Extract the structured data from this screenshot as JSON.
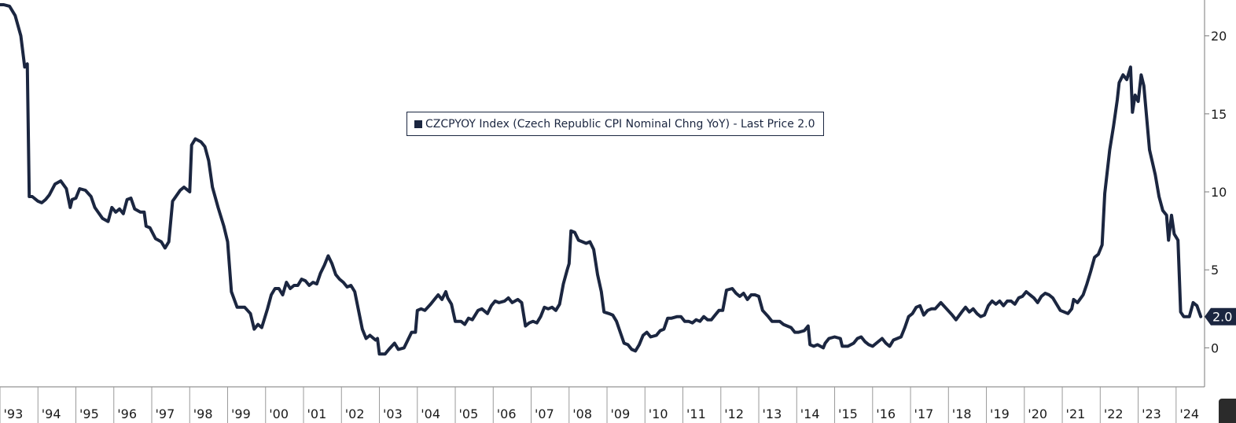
{
  "chart_data": {
    "type": "line",
    "title": "",
    "xlabel": "",
    "ylabel": "",
    "x_tick_labels": [
      "'93",
      "'94",
      "'95",
      "'96",
      "'97",
      "'98",
      "'99",
      "'00",
      "'01",
      "'02",
      "'03",
      "'04",
      "'05",
      "'06",
      "'07",
      "'08",
      "'09",
      "'10",
      "'11",
      "'12",
      "'13",
      "'14",
      "'15",
      "'16",
      "'17",
      "'18",
      "'19",
      "'20",
      "'21",
      "'22",
      "'23",
      "'24"
    ],
    "y_ticks": [
      0,
      5,
      10,
      15,
      20
    ],
    "ylim": [
      -2.5,
      22.3
    ],
    "xlim": [
      1993.0,
      2024.75
    ],
    "legend": "CZCPYOY Index (Czech Republic CPI Nominal Chng YoY) - Last Price 2.0",
    "legend_position": "top-center",
    "last_value_label": "2.0",
    "line_color": "#1b2640",
    "series": [
      {
        "values": [
          [
            1993.0,
            22.0
          ],
          [
            1993.1,
            22.0
          ],
          [
            1993.25,
            21.9
          ],
          [
            1993.4,
            21.3
          ],
          [
            1993.55,
            20.0
          ],
          [
            1993.65,
            18.0
          ],
          [
            1993.72,
            18.2
          ],
          [
            1993.77,
            9.7
          ],
          [
            1993.85,
            9.7
          ],
          [
            1994.0,
            9.4
          ],
          [
            1994.1,
            9.3
          ],
          [
            1994.2,
            9.5
          ],
          [
            1994.3,
            9.8
          ],
          [
            1994.45,
            10.5
          ],
          [
            1994.6,
            10.7
          ],
          [
            1994.75,
            10.2
          ],
          [
            1994.85,
            9.0
          ],
          [
            1994.9,
            9.5
          ],
          [
            1995.0,
            9.6
          ],
          [
            1995.1,
            10.2
          ],
          [
            1995.25,
            10.1
          ],
          [
            1995.4,
            9.7
          ],
          [
            1995.5,
            9.0
          ],
          [
            1995.7,
            8.3
          ],
          [
            1995.85,
            8.1
          ],
          [
            1995.95,
            9.0
          ],
          [
            1996.05,
            8.7
          ],
          [
            1996.15,
            8.9
          ],
          [
            1996.25,
            8.6
          ],
          [
            1996.35,
            9.5
          ],
          [
            1996.45,
            9.6
          ],
          [
            1996.55,
            8.9
          ],
          [
            1996.7,
            8.7
          ],
          [
            1996.8,
            8.7
          ],
          [
            1996.85,
            7.8
          ],
          [
            1996.95,
            7.7
          ],
          [
            1997.1,
            7.0
          ],
          [
            1997.25,
            6.8
          ],
          [
            1997.35,
            6.4
          ],
          [
            1997.45,
            6.8
          ],
          [
            1997.55,
            9.4
          ],
          [
            1997.75,
            10.1
          ],
          [
            1997.85,
            10.3
          ],
          [
            1998.0,
            10.0
          ],
          [
            1998.05,
            13.0
          ],
          [
            1998.15,
            13.4
          ],
          [
            1998.3,
            13.2
          ],
          [
            1998.4,
            12.9
          ],
          [
            1998.5,
            12.0
          ],
          [
            1998.6,
            10.3
          ],
          [
            1998.75,
            9.0
          ],
          [
            1998.9,
            7.8
          ],
          [
            1999.0,
            6.8
          ],
          [
            1999.1,
            3.6
          ],
          [
            1999.25,
            2.6
          ],
          [
            1999.45,
            2.6
          ],
          [
            1999.6,
            2.2
          ],
          [
            1999.7,
            1.2
          ],
          [
            1999.8,
            1.5
          ],
          [
            1999.9,
            1.3
          ],
          [
            2000.05,
            2.5
          ],
          [
            2000.15,
            3.4
          ],
          [
            2000.25,
            3.8
          ],
          [
            2000.35,
            3.8
          ],
          [
            2000.45,
            3.4
          ],
          [
            2000.55,
            4.2
          ],
          [
            2000.65,
            3.8
          ],
          [
            2000.75,
            4.0
          ],
          [
            2000.85,
            4.0
          ],
          [
            2000.95,
            4.4
          ],
          [
            2001.05,
            4.3
          ],
          [
            2001.15,
            4.0
          ],
          [
            2001.25,
            4.2
          ],
          [
            2001.35,
            4.1
          ],
          [
            2001.45,
            4.8
          ],
          [
            2001.55,
            5.3
          ],
          [
            2001.65,
            5.9
          ],
          [
            2001.75,
            5.4
          ],
          [
            2001.85,
            4.7
          ],
          [
            2001.95,
            4.4
          ],
          [
            2002.05,
            4.2
          ],
          [
            2002.15,
            3.9
          ],
          [
            2002.25,
            4.0
          ],
          [
            2002.35,
            3.6
          ],
          [
            2002.45,
            2.4
          ],
          [
            2002.55,
            1.2
          ],
          [
            2002.65,
            0.6
          ],
          [
            2002.75,
            0.8
          ],
          [
            2002.9,
            0.5
          ],
          [
            2002.95,
            0.6
          ],
          [
            2003.0,
            -0.4
          ],
          [
            2003.15,
            -0.4
          ],
          [
            2003.25,
            -0.1
          ],
          [
            2003.4,
            0.3
          ],
          [
            2003.5,
            -0.1
          ],
          [
            2003.65,
            0.0
          ],
          [
            2003.75,
            0.5
          ],
          [
            2003.85,
            1.0
          ],
          [
            2003.95,
            1.0
          ],
          [
            2004.0,
            2.4
          ],
          [
            2004.1,
            2.5
          ],
          [
            2004.2,
            2.4
          ],
          [
            2004.35,
            2.8
          ],
          [
            2004.45,
            3.1
          ],
          [
            2004.55,
            3.4
          ],
          [
            2004.65,
            3.1
          ],
          [
            2004.75,
            3.6
          ],
          [
            2004.8,
            3.2
          ],
          [
            2004.9,
            2.8
          ],
          [
            2005.0,
            1.7
          ],
          [
            2005.15,
            1.7
          ],
          [
            2005.25,
            1.5
          ],
          [
            2005.35,
            1.9
          ],
          [
            2005.45,
            1.8
          ],
          [
            2005.6,
            2.4
          ],
          [
            2005.7,
            2.5
          ],
          [
            2005.85,
            2.2
          ],
          [
            2005.95,
            2.7
          ],
          [
            2006.05,
            3.0
          ],
          [
            2006.15,
            2.9
          ],
          [
            2006.3,
            3.0
          ],
          [
            2006.4,
            3.2
          ],
          [
            2006.5,
            2.9
          ],
          [
            2006.65,
            3.1
          ],
          [
            2006.75,
            2.9
          ],
          [
            2006.85,
            1.4
          ],
          [
            2006.95,
            1.6
          ],
          [
            2007.05,
            1.7
          ],
          [
            2007.15,
            1.6
          ],
          [
            2007.25,
            2.0
          ],
          [
            2007.35,
            2.6
          ],
          [
            2007.45,
            2.5
          ],
          [
            2007.55,
            2.6
          ],
          [
            2007.65,
            2.4
          ],
          [
            2007.75,
            2.8
          ],
          [
            2007.85,
            4.1
          ],
          [
            2007.95,
            5.0
          ],
          [
            2008.0,
            5.4
          ],
          [
            2008.05,
            7.5
          ],
          [
            2008.15,
            7.4
          ],
          [
            2008.25,
            6.9
          ],
          [
            2008.35,
            6.8
          ],
          [
            2008.45,
            6.7
          ],
          [
            2008.55,
            6.8
          ],
          [
            2008.65,
            6.3
          ],
          [
            2008.75,
            4.7
          ],
          [
            2008.85,
            3.6
          ],
          [
            2008.92,
            2.3
          ],
          [
            2009.05,
            2.2
          ],
          [
            2009.15,
            2.1
          ],
          [
            2009.25,
            1.7
          ],
          [
            2009.35,
            1.0
          ],
          [
            2009.45,
            0.3
          ],
          [
            2009.55,
            0.2
          ],
          [
            2009.65,
            -0.1
          ],
          [
            2009.75,
            -0.2
          ],
          [
            2009.85,
            0.2
          ],
          [
            2009.95,
            0.8
          ],
          [
            2010.05,
            1.0
          ],
          [
            2010.15,
            0.7
          ],
          [
            2010.3,
            0.8
          ],
          [
            2010.4,
            1.1
          ],
          [
            2010.5,
            1.2
          ],
          [
            2010.6,
            1.9
          ],
          [
            2010.7,
            1.9
          ],
          [
            2010.85,
            2.0
          ],
          [
            2010.95,
            2.0
          ],
          [
            2011.05,
            1.7
          ],
          [
            2011.15,
            1.7
          ],
          [
            2011.25,
            1.6
          ],
          [
            2011.35,
            1.8
          ],
          [
            2011.45,
            1.7
          ],
          [
            2011.55,
            2.0
          ],
          [
            2011.65,
            1.8
          ],
          [
            2011.75,
            1.8
          ],
          [
            2011.85,
            2.1
          ],
          [
            2011.95,
            2.4
          ],
          [
            2012.05,
            2.4
          ],
          [
            2012.15,
            3.7
          ],
          [
            2012.3,
            3.8
          ],
          [
            2012.4,
            3.5
          ],
          [
            2012.5,
            3.3
          ],
          [
            2012.6,
            3.5
          ],
          [
            2012.7,
            3.1
          ],
          [
            2012.8,
            3.4
          ],
          [
            2012.9,
            3.4
          ],
          [
            2013.0,
            3.3
          ],
          [
            2013.1,
            2.4
          ],
          [
            2013.25,
            2.0
          ],
          [
            2013.35,
            1.7
          ],
          [
            2013.45,
            1.7
          ],
          [
            2013.55,
            1.7
          ],
          [
            2013.65,
            1.5
          ],
          [
            2013.75,
            1.4
          ],
          [
            2013.85,
            1.3
          ],
          [
            2013.95,
            1.0
          ],
          [
            2014.05,
            1.0
          ],
          [
            2014.2,
            1.1
          ],
          [
            2014.3,
            1.4
          ],
          [
            2014.35,
            0.2
          ],
          [
            2014.45,
            0.1
          ],
          [
            2014.55,
            0.2
          ],
          [
            2014.7,
            0.0
          ],
          [
            2014.75,
            0.3
          ],
          [
            2014.85,
            0.6
          ],
          [
            2015.0,
            0.7
          ],
          [
            2015.15,
            0.6
          ],
          [
            2015.2,
            0.1
          ],
          [
            2015.35,
            0.1
          ],
          [
            2015.5,
            0.3
          ],
          [
            2015.6,
            0.6
          ],
          [
            2015.7,
            0.7
          ],
          [
            2015.8,
            0.4
          ],
          [
            2015.9,
            0.2
          ],
          [
            2016.0,
            0.1
          ],
          [
            2016.15,
            0.4
          ],
          [
            2016.25,
            0.6
          ],
          [
            2016.35,
            0.3
          ],
          [
            2016.45,
            0.1
          ],
          [
            2016.55,
            0.5
          ],
          [
            2016.65,
            0.6
          ],
          [
            2016.75,
            0.7
          ],
          [
            2016.85,
            1.3
          ],
          [
            2016.95,
            2.0
          ],
          [
            2017.05,
            2.2
          ],
          [
            2017.15,
            2.6
          ],
          [
            2017.25,
            2.7
          ],
          [
            2017.35,
            2.1
          ],
          [
            2017.45,
            2.4
          ],
          [
            2017.55,
            2.5
          ],
          [
            2017.65,
            2.5
          ],
          [
            2017.8,
            2.9
          ],
          [
            2017.95,
            2.5
          ],
          [
            2018.1,
            2.1
          ],
          [
            2018.2,
            1.8
          ],
          [
            2018.35,
            2.3
          ],
          [
            2018.45,
            2.6
          ],
          [
            2018.55,
            2.3
          ],
          [
            2018.65,
            2.5
          ],
          [
            2018.75,
            2.2
          ],
          [
            2018.85,
            2.0
          ],
          [
            2018.95,
            2.1
          ],
          [
            2019.05,
            2.7
          ],
          [
            2019.15,
            3.0
          ],
          [
            2019.25,
            2.8
          ],
          [
            2019.35,
            3.0
          ],
          [
            2019.45,
            2.7
          ],
          [
            2019.55,
            3.0
          ],
          [
            2019.65,
            3.0
          ],
          [
            2019.75,
            2.8
          ],
          [
            2019.85,
            3.2
          ],
          [
            2019.95,
            3.3
          ],
          [
            2020.05,
            3.6
          ],
          [
            2020.15,
            3.4
          ],
          [
            2020.25,
            3.2
          ],
          [
            2020.35,
            2.9
          ],
          [
            2020.45,
            3.3
          ],
          [
            2020.55,
            3.5
          ],
          [
            2020.65,
            3.4
          ],
          [
            2020.75,
            3.2
          ],
          [
            2020.85,
            2.8
          ],
          [
            2020.95,
            2.4
          ],
          [
            2021.05,
            2.3
          ],
          [
            2021.15,
            2.2
          ],
          [
            2021.25,
            2.5
          ],
          [
            2021.3,
            3.1
          ],
          [
            2021.4,
            2.9
          ],
          [
            2021.55,
            3.4
          ],
          [
            2021.65,
            4.1
          ],
          [
            2021.75,
            4.9
          ],
          [
            2021.85,
            5.8
          ],
          [
            2021.95,
            6.0
          ],
          [
            2022.05,
            6.6
          ],
          [
            2022.12,
            9.9
          ],
          [
            2022.25,
            12.7
          ],
          [
            2022.35,
            14.2
          ],
          [
            2022.45,
            15.9
          ],
          [
            2022.5,
            17.0
          ],
          [
            2022.6,
            17.5
          ],
          [
            2022.7,
            17.2
          ],
          [
            2022.8,
            18.0
          ],
          [
            2022.85,
            15.1
          ],
          [
            2022.92,
            16.2
          ],
          [
            2023.0,
            15.8
          ],
          [
            2023.08,
            17.5
          ],
          [
            2023.15,
            16.8
          ],
          [
            2023.3,
            12.7
          ],
          [
            2023.45,
            11.1
          ],
          [
            2023.55,
            9.7
          ],
          [
            2023.65,
            8.8
          ],
          [
            2023.75,
            8.5
          ],
          [
            2023.8,
            6.9
          ],
          [
            2023.88,
            8.5
          ],
          [
            2023.95,
            7.3
          ],
          [
            2024.05,
            6.9
          ],
          [
            2024.12,
            2.3
          ],
          [
            2024.2,
            2.0
          ],
          [
            2024.35,
            2.0
          ],
          [
            2024.45,
            2.9
          ],
          [
            2024.55,
            2.7
          ],
          [
            2024.65,
            2.0
          ]
        ]
      }
    ]
  }
}
